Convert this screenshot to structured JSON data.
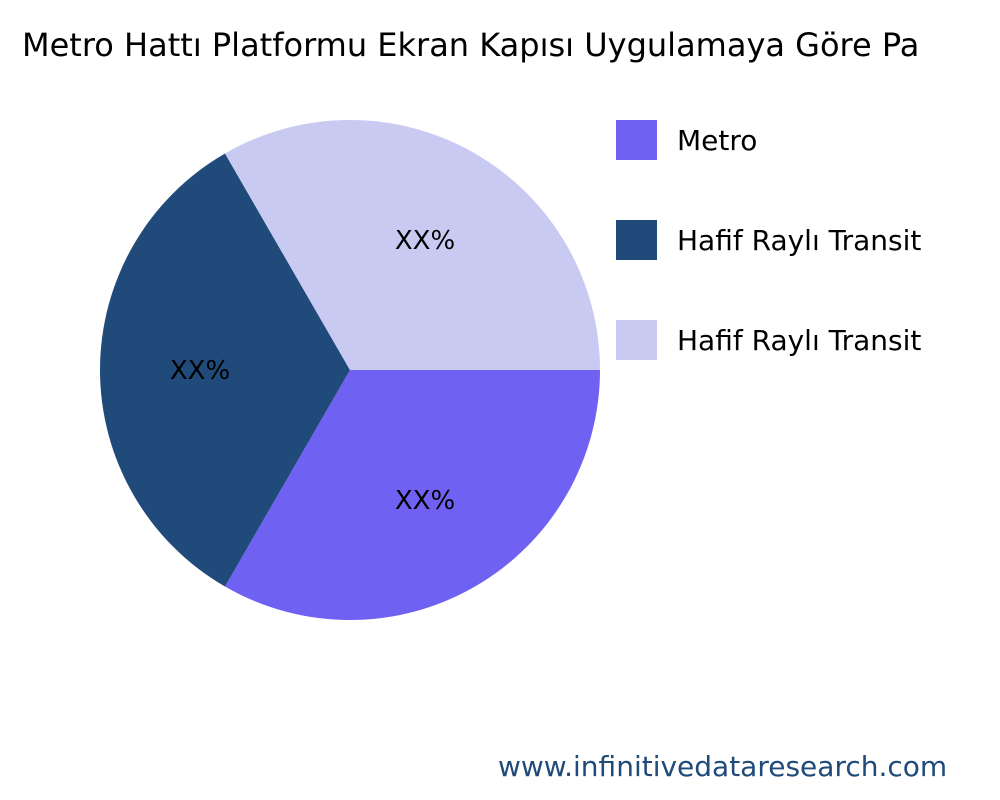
{
  "chart_data": {
    "type": "pie",
    "title": "Metro Hattı Platformu Ekran Kapısı Uygulamaya Göre Pa",
    "categories": [
      "Metro",
      "Hafif Raylı Transit",
      "Hafif Raylı Transit"
    ],
    "values": [
      33.33,
      33.33,
      33.33
    ],
    "data_labels": [
      "XX%",
      "XX%",
      "XX%"
    ],
    "colors": [
      "#6f61f2",
      "#1f4a7a",
      "#c9caf2"
    ],
    "legend_position": "right"
  },
  "footer": {
    "url": "www.infinitivedataresearch.com"
  }
}
